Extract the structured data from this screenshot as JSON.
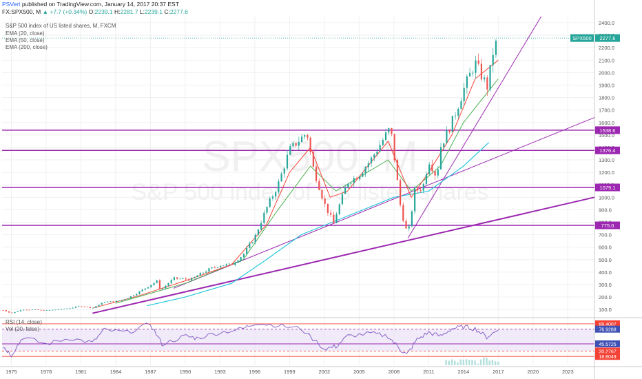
{
  "header": {
    "user": "PSVert",
    "published": "published on TradingView.com, January 14, 2017 20:37 EST",
    "symbol_line": {
      "symbol": "FX:SPX500, M",
      "change": "▲ +7.7 (+0.34%)",
      "o_label": "O:",
      "o": "2239.1",
      "h_label": "H:",
      "h": "2281.7",
      "l_label": "L:",
      "l": "2239.1",
      "c_label": "C:",
      "c": "2277.6"
    }
  },
  "legend": {
    "title": "S&P 500 index of US listed shares, M, FXCM",
    "items": [
      "EMA (20, close)",
      "EMA (50, close)",
      "EMA (200, close)"
    ]
  },
  "watermark": {
    "symbol": "SPX500, M",
    "description": "S&P 500 index of US listed shares"
  },
  "rsi_legend": [
    "RSI (14, close)",
    "Vol (20, false)"
  ],
  "colors": {
    "candle_up": "#26a69a",
    "candle_down": "#ef5350",
    "ema20": "#f44336",
    "ema50": "#4caf50",
    "ema200": "#26c6da",
    "horizontal_levels": "#9c27b0",
    "trend_lines": "#9c27b0",
    "rsi_line": "#7e57c2",
    "rsi_band": "#e6dcf5",
    "volume": "#b2dfdb"
  },
  "chart_data": {
    "type": "candlestick",
    "price_axis": {
      "ticks": [
        100,
        200,
        300,
        400,
        500,
        600,
        700,
        800,
        900,
        1000,
        1100,
        1200,
        1300,
        1400,
        1500,
        1600,
        1700,
        1800,
        1900,
        2000,
        2100,
        2200,
        2300,
        2400
      ],
      "tick_labels": [
        "100.0",
        "200.0",
        "300.0",
        "400.0",
        "500.0",
        "600.0",
        "700.0",
        "800.0",
        "900.0",
        "1000.0",
        "1100.0",
        "1200.0",
        "1300.0",
        "1400.0",
        "1500.0",
        "1600.0",
        "1700.0",
        "1800.0",
        "1900.0",
        "2000.0",
        "2100.0",
        "2200.0",
        "2300.0",
        "2400.0"
      ],
      "range": [
        40,
        2450
      ]
    },
    "time_axis": {
      "ticks": [
        1975,
        1978,
        1981,
        1984,
        1987,
        1990,
        1993,
        1996,
        1999,
        2002,
        2005,
        2008,
        2011,
        2014,
        2017,
        2020,
        2023
      ],
      "tick_labels": [
        "1975",
        "1978",
        "1981",
        "1984",
        "1987",
        "1990",
        "1993",
        "1996",
        "1999",
        "2002",
        "2005",
        "2008",
        "2011",
        "2014",
        "2017",
        "2020",
        "2023"
      ],
      "range": [
        1974.2,
        2025.3
      ]
    },
    "price_path": [
      {
        "x": 1974.3,
        "y": 95
      },
      {
        "x": 1975,
        "y": 70
      },
      {
        "x": 1976,
        "y": 100
      },
      {
        "x": 1977,
        "y": 98
      },
      {
        "x": 1978,
        "y": 92
      },
      {
        "x": 1979,
        "y": 100
      },
      {
        "x": 1980,
        "y": 110
      },
      {
        "x": 1981,
        "y": 128
      },
      {
        "x": 1982,
        "y": 112
      },
      {
        "x": 1983,
        "y": 160
      },
      {
        "x": 1984,
        "y": 165
      },
      {
        "x": 1985,
        "y": 190
      },
      {
        "x": 1986,
        "y": 240
      },
      {
        "x": 1987.6,
        "y": 330
      },
      {
        "x": 1987.9,
        "y": 240
      },
      {
        "x": 1988,
        "y": 265
      },
      {
        "x": 1989,
        "y": 350
      },
      {
        "x": 1990.5,
        "y": 340
      },
      {
        "x": 1991,
        "y": 370
      },
      {
        "x": 1992,
        "y": 420
      },
      {
        "x": 1993,
        "y": 455
      },
      {
        "x": 1994,
        "y": 460
      },
      {
        "x": 1995,
        "y": 540
      },
      {
        "x": 1996,
        "y": 680
      },
      {
        "x": 1997,
        "y": 910
      },
      {
        "x": 1998,
        "y": 1100
      },
      {
        "x": 1999,
        "y": 1380
      },
      {
        "x": 2000.5,
        "y": 1520
      },
      {
        "x": 2001,
        "y": 1250
      },
      {
        "x": 2002,
        "y": 950
      },
      {
        "x": 2002.8,
        "y": 790
      },
      {
        "x": 2003,
        "y": 860
      },
      {
        "x": 2004,
        "y": 1120
      },
      {
        "x": 2005,
        "y": 1180
      },
      {
        "x": 2006,
        "y": 1300
      },
      {
        "x": 2007.7,
        "y": 1560
      },
      {
        "x": 2008,
        "y": 1350
      },
      {
        "x": 2008.6,
        "y": 900
      },
      {
        "x": 2009.2,
        "y": 690
      },
      {
        "x": 2009.8,
        "y": 1050
      },
      {
        "x": 2010.5,
        "y": 1080
      },
      {
        "x": 2011,
        "y": 1300
      },
      {
        "x": 2011.7,
        "y": 1160
      },
      {
        "x": 2012,
        "y": 1400
      },
      {
        "x": 2013,
        "y": 1600
      },
      {
        "x": 2014,
        "y": 1860
      },
      {
        "x": 2015,
        "y": 2080
      },
      {
        "x": 2015.7,
        "y": 1950
      },
      {
        "x": 2016.1,
        "y": 1880
      },
      {
        "x": 2016.5,
        "y": 2150
      },
      {
        "x": 2017,
        "y": 2277.6
      }
    ],
    "ema20": [
      {
        "x": 1982,
        "y": 110
      },
      {
        "x": 1986,
        "y": 210
      },
      {
        "x": 1990,
        "y": 330
      },
      {
        "x": 1994,
        "y": 460
      },
      {
        "x": 1997,
        "y": 780
      },
      {
        "x": 1999,
        "y": 1200
      },
      {
        "x": 2000.8,
        "y": 1400
      },
      {
        "x": 2002.5,
        "y": 1000
      },
      {
        "x": 2004,
        "y": 1050
      },
      {
        "x": 2007.5,
        "y": 1450
      },
      {
        "x": 2009.5,
        "y": 1000
      },
      {
        "x": 2011,
        "y": 1200
      },
      {
        "x": 2013,
        "y": 1500
      },
      {
        "x": 2015,
        "y": 1950
      },
      {
        "x": 2017,
        "y": 2100
      }
    ],
    "ema50": [
      {
        "x": 1984,
        "y": 150
      },
      {
        "x": 1990,
        "y": 310
      },
      {
        "x": 1995,
        "y": 500
      },
      {
        "x": 1998,
        "y": 900
      },
      {
        "x": 2000.8,
        "y": 1250
      },
      {
        "x": 2003,
        "y": 1050
      },
      {
        "x": 2007.5,
        "y": 1300
      },
      {
        "x": 2009.5,
        "y": 1050
      },
      {
        "x": 2012,
        "y": 1250
      },
      {
        "x": 2014,
        "y": 1600
      },
      {
        "x": 2017,
        "y": 1950
      }
    ],
    "ema200": [
      {
        "x": 1986.7,
        "y": 130
      },
      {
        "x": 1990,
        "y": 200
      },
      {
        "x": 1994,
        "y": 310
      },
      {
        "x": 1997,
        "y": 500
      },
      {
        "x": 2000,
        "y": 700
      },
      {
        "x": 2004,
        "y": 850
      },
      {
        "x": 2008,
        "y": 1000
      },
      {
        "x": 2011,
        "y": 1050
      },
      {
        "x": 2014,
        "y": 1250
      },
      {
        "x": 2016.2,
        "y": 1440
      }
    ],
    "horizontal_levels": [
      {
        "value": 1538.6,
        "label": "1538.6"
      },
      {
        "value": 1376.4,
        "label": "1376.4"
      },
      {
        "value": 1079.1,
        "label": "1079.1"
      },
      {
        "value": 775.0,
        "label": "775.0"
      }
    ],
    "last_price": {
      "symbol": "SPX500",
      "value": 2277.6,
      "label": "2277.6"
    },
    "trend_lines": [
      {
        "from": {
          "x": 1982,
          "y": 70
        },
        "to": {
          "x": 2025.3,
          "y": 1000
        },
        "width": 2
      },
      {
        "from": {
          "x": 1989,
          "y": 270
        },
        "to": {
          "x": 2025.3,
          "y": 1640
        },
        "width": 1
      },
      {
        "from": {
          "x": 2009.2,
          "y": 670
        },
        "to": {
          "x": 2020.7,
          "y": 2450
        },
        "width": 1
      }
    ],
    "rsi": {
      "levels": [
        {
          "value": 88.4007,
          "label": "88.4007"
        },
        {
          "value": 76.9288,
          "label": "76.9288"
        },
        {
          "value": 45.5725,
          "label": "45.5725"
        },
        {
          "value": 30.2767,
          "label": "30.2767"
        },
        {
          "value": 18.8049,
          "label": "18.8049"
        }
      ],
      "path": [
        {
          "x": 1974.3,
          "y": 40
        },
        {
          "x": 1975,
          "y": 22
        },
        {
          "x": 1976,
          "y": 60
        },
        {
          "x": 1978,
          "y": 45
        },
        {
          "x": 1980,
          "y": 58
        },
        {
          "x": 1982,
          "y": 48
        },
        {
          "x": 1983,
          "y": 75
        },
        {
          "x": 1985,
          "y": 70
        },
        {
          "x": 1987,
          "y": 88
        },
        {
          "x": 1988,
          "y": 45
        },
        {
          "x": 1990,
          "y": 62
        },
        {
          "x": 1991,
          "y": 58
        },
        {
          "x": 1993,
          "y": 70
        },
        {
          "x": 1995,
          "y": 78
        },
        {
          "x": 1996,
          "y": 90
        },
        {
          "x": 1998,
          "y": 85
        },
        {
          "x": 2000,
          "y": 78
        },
        {
          "x": 2002,
          "y": 35
        },
        {
          "x": 2003,
          "y": 40
        },
        {
          "x": 2004,
          "y": 62
        },
        {
          "x": 2006,
          "y": 68
        },
        {
          "x": 2007.5,
          "y": 62
        },
        {
          "x": 2008.5,
          "y": 35
        },
        {
          "x": 2009.1,
          "y": 22
        },
        {
          "x": 2010,
          "y": 55
        },
        {
          "x": 2011,
          "y": 70
        },
        {
          "x": 2012,
          "y": 62
        },
        {
          "x": 2013,
          "y": 78
        },
        {
          "x": 2014,
          "y": 82
        },
        {
          "x": 2015,
          "y": 78
        },
        {
          "x": 2016,
          "y": 60
        },
        {
          "x": 2017,
          "y": 75
        }
      ]
    }
  }
}
